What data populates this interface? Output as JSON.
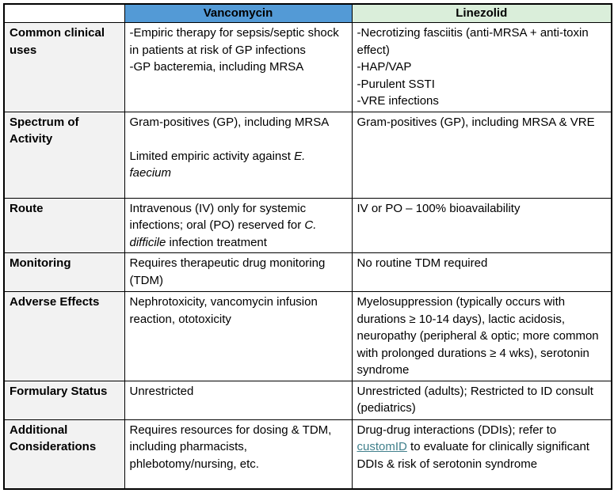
{
  "header": {
    "corner": "",
    "vancomycin": "Vancomycin",
    "linezolid": "Linezolid"
  },
  "rows": {
    "clinical_uses": {
      "label": "Common clinical uses",
      "vanc_item1": "-Empiric therapy for sepsis/septic shock in patients at risk of GP infections",
      "vanc_item2": "-GP bacteremia, including MRSA",
      "line_item1": "-Necrotizing fasciitis (anti-MRSA + anti-toxin effect)",
      "line_item2": "-HAP/VAP",
      "line_item3": "-Purulent SSTI",
      "line_item4": "-VRE infections"
    },
    "spectrum": {
      "label": "Spectrum of Activity",
      "vanc_p1": "Gram-positives (GP), including MRSA",
      "vanc_p2_pre": "Limited empiric activity against ",
      "vanc_p2_italic": "E. faecium",
      "line_text": "Gram-positives (GP), including MRSA & VRE"
    },
    "route": {
      "label": "Route",
      "vanc_pre": "Intravenous (IV) only for systemic infections; oral (PO) reserved for ",
      "vanc_italic": "C. difficile",
      "vanc_post": " infection treatment",
      "line_text": "IV or PO – 100% bioavailability"
    },
    "monitoring": {
      "label": "Monitoring",
      "vanc_text": "Requires therapeutic drug monitoring (TDM)",
      "line_text": "No routine TDM required"
    },
    "adverse": {
      "label": "Adverse Effects",
      "vanc_text": "Nephrotoxicity, vancomycin infusion reaction, ototoxicity",
      "line_text": "Myelosuppression (typically occurs with durations ≥ 10-14 days), lactic acidosis, neuropathy (peripheral & optic; more common with prolonged durations ≥ 4 wks), serotonin syndrome"
    },
    "formulary": {
      "label": "Formulary Status",
      "vanc_text": "Unrestricted",
      "line_text": "Unrestricted (adults); Restricted to ID consult (pediatrics)"
    },
    "additional": {
      "label": "Additional Considerations",
      "vanc_text": "Requires resources for dosing & TDM, including pharmacists, phlebotomy/nursing, etc.",
      "line_pre": "Drug-drug interactions (DDIs); refer to ",
      "line_link": "customID",
      "line_post": " to evaluate for clinically significant DDIs & risk of serotonin syndrome"
    }
  },
  "colors": {
    "vancomycin_header_bg": "#539AD6",
    "linezolid_header_bg": "#DAEEDA",
    "label_column_bg": "#F2F2F2",
    "link_color": "#41808C",
    "border": "#000000"
  }
}
